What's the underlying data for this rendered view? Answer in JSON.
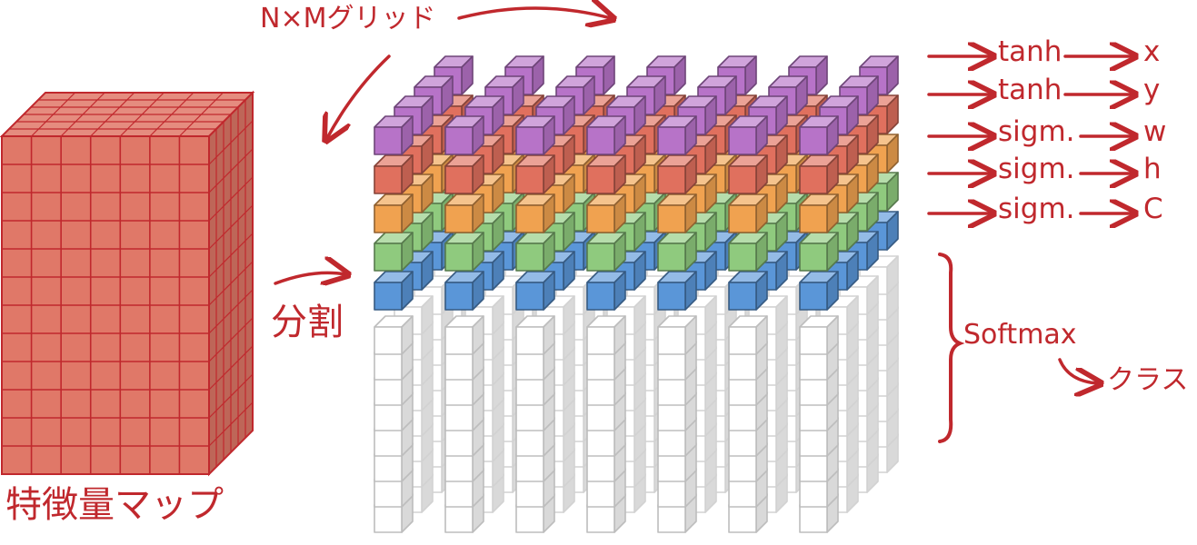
{
  "labels": {
    "grid": "N×Mグリッド",
    "split": "分割",
    "feature_map": "特徴量マップ",
    "softmax": "Softmax",
    "classes": "クラス"
  },
  "outputs": [
    {
      "fn": "tanh",
      "var": "x"
    },
    {
      "fn": "tanh",
      "var": "y"
    },
    {
      "fn": "sigm.",
      "var": "w"
    },
    {
      "fn": "sigm.",
      "var": "h"
    },
    {
      "fn": "sigm.",
      "var": "C"
    }
  ],
  "colors": {
    "ink": "#c0282d",
    "feature_map": "#e07868",
    "purple": "#b773c8",
    "red": "#e0705e",
    "orange": "#f0a250",
    "green": "#8fca7e",
    "blue": "#5a96d8",
    "class_cells": "#ffffff"
  }
}
